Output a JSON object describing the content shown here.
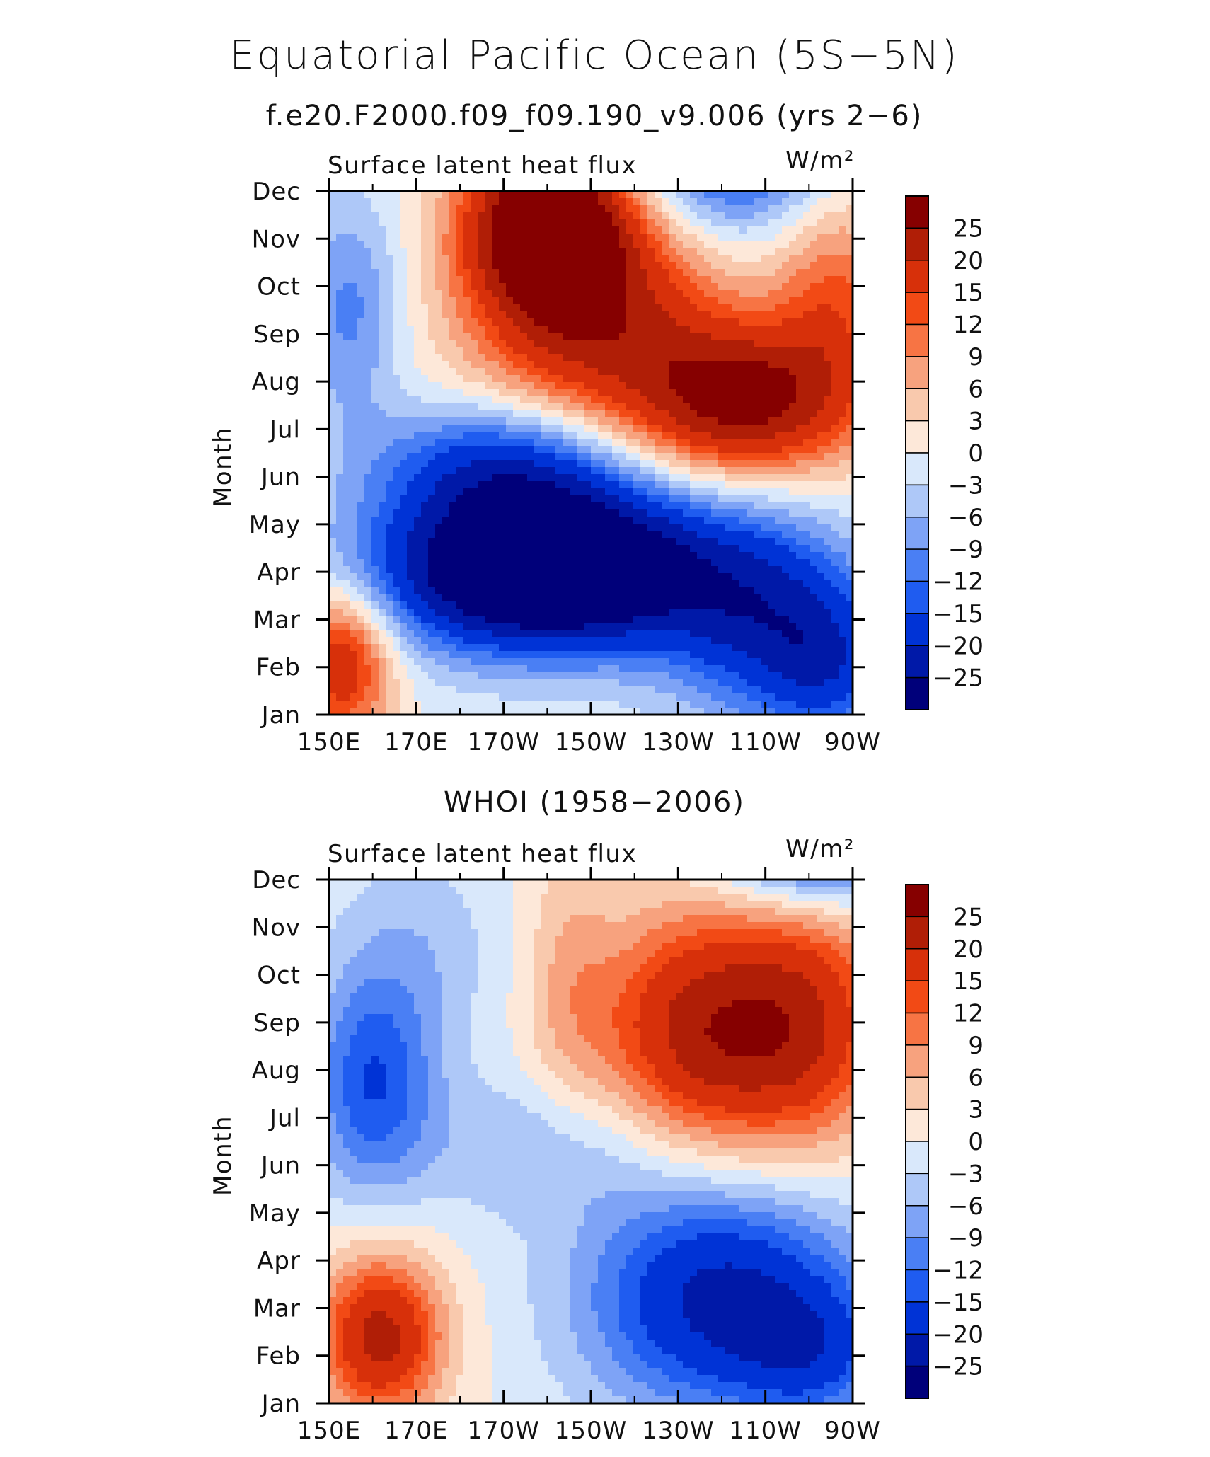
{
  "figure": {
    "title": "Equatorial Pacific Ocean (5S−5N)"
  },
  "chart_data": [
    {
      "type": "heatmap",
      "title": "f.e20.F2000.f09_f09.190_v9.006 (yrs 2−6)",
      "left_label": "Surface latent heat flux",
      "units_label": "W/m²",
      "xlabel": "",
      "ylabel": "Month",
      "x_ticks": [
        "150E",
        "170E",
        "170W",
        "150W",
        "130W",
        "110W",
        "90W"
      ],
      "x_values_deg": [
        150,
        170,
        190,
        210,
        230,
        250,
        270
      ],
      "y_ticks": [
        "Jan",
        "Feb",
        "Mar",
        "Apr",
        "May",
        "Jun",
        "Jul",
        "Aug",
        "Sep",
        "Oct",
        "Nov",
        "Dec"
      ],
      "contour_levels": [
        -25,
        -20,
        -15,
        -12,
        -9,
        -6,
        -3,
        0,
        3,
        6,
        9,
        12,
        15,
        20,
        25
      ],
      "colorbar_labels": [
        "25",
        "20",
        "15",
        "12",
        "9",
        "6",
        "3",
        "0",
        "−3",
        "−6",
        "−9",
        "−12",
        "−15",
        "−20",
        "−25"
      ],
      "colors": [
        "#00007a",
        "#0019a8",
        "#0033d6",
        "#1f5cf0",
        "#4a7ff4",
        "#7ea3f6",
        "#aec8f8",
        "#d9e8fb",
        "#fde8d9",
        "#f9c9ad",
        "#f7a27e",
        "#f77444",
        "#f24a15",
        "#d7300a",
        "#b01e06",
        "#860000"
      ],
      "blobs": [
        {
          "lon": 200,
          "mon": 3.1,
          "slon": 26,
          "smon": 1.2,
          "amp": -44
        },
        {
          "lon": 250,
          "mon": 2.0,
          "slon": 16,
          "smon": 1.5,
          "amp": -18
        },
        {
          "lon": 265,
          "mon": 1.0,
          "slon": 10,
          "smon": 1.1,
          "amp": -12
        },
        {
          "lon": 190,
          "mon": 5.3,
          "slon": 20,
          "smon": 0.9,
          "amp": -16
        },
        {
          "lon": 155,
          "mon": 8.5,
          "slon": 8,
          "smon": 1.7,
          "amp": -10
        },
        {
          "lon": 153,
          "mon": 1.1,
          "slon": 8,
          "smon": 1.1,
          "amp": 20
        },
        {
          "lon": 200,
          "mon": 10.3,
          "slon": 13,
          "smon": 1.3,
          "amp": 34
        },
        {
          "lon": 212,
          "mon": 8.3,
          "slon": 20,
          "smon": 1.7,
          "amp": 20
        },
        {
          "lon": 245,
          "mon": 6.6,
          "slon": 17,
          "smon": 1.1,
          "amp": 26
        },
        {
          "lon": 266,
          "mon": 8.6,
          "slon": 10,
          "smon": 1.7,
          "amp": 12
        },
        {
          "lon": 242,
          "mon": 11.6,
          "slon": 16,
          "smon": 1.1,
          "amp": -16
        }
      ]
    },
    {
      "type": "heatmap",
      "title": "WHOI (1958−2006)",
      "left_label": "Surface latent heat flux",
      "units_label": "W/m²",
      "xlabel": "",
      "ylabel": "Month",
      "x_ticks": [
        "150E",
        "170E",
        "170W",
        "150W",
        "130W",
        "110W",
        "90W"
      ],
      "x_values_deg": [
        150,
        170,
        190,
        210,
        230,
        250,
        270
      ],
      "y_ticks": [
        "Jan",
        "Feb",
        "Mar",
        "Apr",
        "May",
        "Jun",
        "Jul",
        "Aug",
        "Sep",
        "Oct",
        "Nov",
        "Dec"
      ],
      "contour_levels": [
        -25,
        -20,
        -15,
        -12,
        -9,
        -6,
        -3,
        0,
        3,
        6,
        9,
        12,
        15,
        20,
        25
      ],
      "colorbar_labels": [
        "25",
        "20",
        "15",
        "12",
        "9",
        "6",
        "3",
        "0",
        "−3",
        "−6",
        "−9",
        "−12",
        "−15",
        "−20",
        "−25"
      ],
      "colors": [
        "#00007a",
        "#0019a8",
        "#0033d6",
        "#1f5cf0",
        "#4a7ff4",
        "#7ea3f6",
        "#aec8f8",
        "#d9e8fb",
        "#fde8d9",
        "#f9c9ad",
        "#f7a27e",
        "#f77444",
        "#f24a15",
        "#d7300a",
        "#b01e06",
        "#860000"
      ],
      "blobs": [
        {
          "lon": 162,
          "mon": 1.4,
          "slon": 10,
          "smon": 1.2,
          "amp": 22
        },
        {
          "lon": 240,
          "mon": 2.2,
          "slon": 22,
          "smon": 1.7,
          "amp": -22
        },
        {
          "lon": 262,
          "mon": 1.0,
          "slon": 12,
          "smon": 1.0,
          "amp": -10
        },
        {
          "lon": 160,
          "mon": 6.7,
          "slon": 10,
          "smon": 1.6,
          "amp": -14
        },
        {
          "lon": 200,
          "mon": 5.4,
          "slon": 22,
          "smon": 1.1,
          "amp": -6
        },
        {
          "lon": 238,
          "mon": 7.8,
          "slon": 18,
          "smon": 1.8,
          "amp": 24
        },
        {
          "lon": 262,
          "mon": 8.0,
          "slon": 12,
          "smon": 1.8,
          "amp": 12
        },
        {
          "lon": 170,
          "mon": 9.5,
          "slon": 14,
          "smon": 1.6,
          "amp": -5
        },
        {
          "lon": 205,
          "mon": 9.0,
          "slon": 7,
          "smon": 2.2,
          "amp": 5
        },
        {
          "lon": 262,
          "mon": 11.8,
          "slon": 16,
          "smon": 0.9,
          "amp": -20
        }
      ]
    }
  ]
}
